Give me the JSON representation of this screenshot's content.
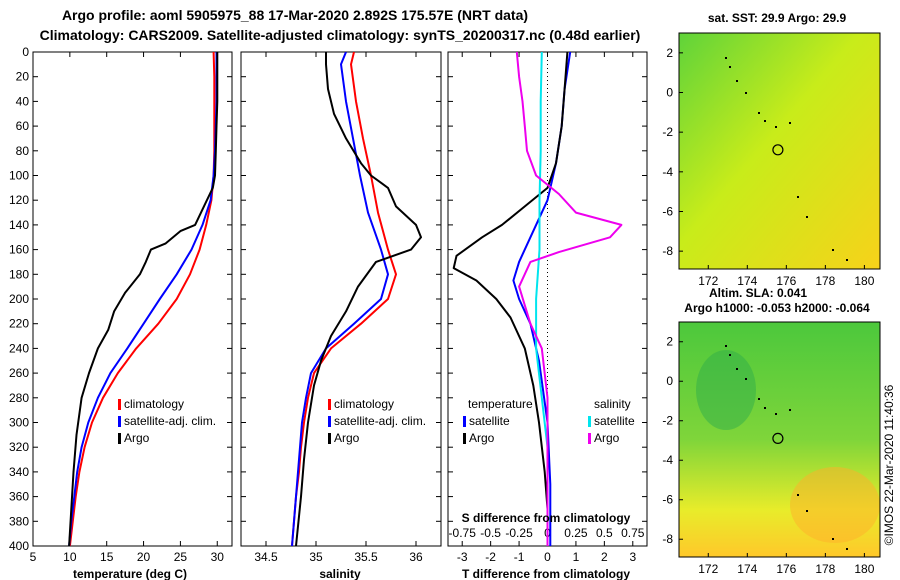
{
  "title_line1": "Argo profile: aoml 5905975_88 17-Mar-2020 2.892S 175.57E (NRT data)",
  "title_line2": "Climatology: CARS2009. Satellite-adjusted climatology: synTS_20200317.nc (0.48d earlier)",
  "colors": {
    "climatology": "#ff0000",
    "satellite": "#0000ff",
    "argo": "#000000",
    "sat_salinity": "#00e5ee",
    "argo_salinity": "#ee00ee"
  },
  "chart_data": [
    {
      "type": "line",
      "name": "temperature-profile",
      "xlabel": "temperature (deg C)",
      "ylabel": "",
      "xlim": [
        5,
        32
      ],
      "ylim": [
        400,
        0
      ],
      "xticks": [
        "5",
        "10",
        "15",
        "20",
        "25",
        "30"
      ],
      "xtick_values": [
        5,
        10,
        15,
        20,
        25,
        30
      ],
      "yticks": [
        "0",
        "20",
        "40",
        "60",
        "80",
        "100",
        "120",
        "140",
        "160",
        "180",
        "200",
        "220",
        "240",
        "260",
        "280",
        "300",
        "320",
        "340",
        "360",
        "380",
        "400"
      ],
      "ytick_values": [
        0,
        20,
        40,
        60,
        80,
        100,
        120,
        140,
        160,
        180,
        200,
        220,
        240,
        260,
        280,
        300,
        320,
        340,
        360,
        380,
        400
      ],
      "legend": [
        "climatology",
        "satellite-adj. clim.",
        "Argo"
      ],
      "series": [
        {
          "name": "climatology",
          "color": "#ff0000",
          "points": [
            [
              29.5,
              0
            ],
            [
              29.6,
              20
            ],
            [
              29.6,
              40
            ],
            [
              29.6,
              60
            ],
            [
              29.6,
              80
            ],
            [
              29.5,
              100
            ],
            [
              29.2,
              120
            ],
            [
              28.5,
              140
            ],
            [
              27.6,
              160
            ],
            [
              26.3,
              180
            ],
            [
              24.5,
              200
            ],
            [
              22.0,
              220
            ],
            [
              19.0,
              240
            ],
            [
              16.5,
              260
            ],
            [
              14.5,
              280
            ],
            [
              13.0,
              300
            ],
            [
              12.0,
              320
            ],
            [
              11.3,
              340
            ],
            [
              10.8,
              360
            ],
            [
              10.4,
              380
            ],
            [
              10.0,
              400
            ]
          ]
        },
        {
          "name": "satellite-adj. clim.",
          "color": "#0000ff",
          "points": [
            [
              29.9,
              0
            ],
            [
              29.9,
              20
            ],
            [
              29.9,
              40
            ],
            [
              29.8,
              60
            ],
            [
              29.7,
              80
            ],
            [
              29.5,
              100
            ],
            [
              29.1,
              120
            ],
            [
              28.0,
              140
            ],
            [
              26.5,
              160
            ],
            [
              24.5,
              180
            ],
            [
              22.2,
              200
            ],
            [
              20.0,
              220
            ],
            [
              17.8,
              240
            ],
            [
              15.5,
              260
            ],
            [
              13.8,
              280
            ],
            [
              12.5,
              300
            ],
            [
              11.6,
              320
            ],
            [
              11.0,
              340
            ],
            [
              10.6,
              360
            ],
            [
              10.2,
              380
            ],
            [
              9.9,
              400
            ]
          ]
        },
        {
          "name": "Argo",
          "color": "#000000",
          "points": [
            [
              30.0,
              0
            ],
            [
              30.0,
              20
            ],
            [
              30.0,
              40
            ],
            [
              29.9,
              60
            ],
            [
              29.8,
              80
            ],
            [
              29.7,
              100
            ],
            [
              29.4,
              110
            ],
            [
              28.6,
              120
            ],
            [
              27.8,
              130
            ],
            [
              27.0,
              140
            ],
            [
              25.0,
              145
            ],
            [
              23.0,
              155
            ],
            [
              21.0,
              160
            ],
            [
              20.3,
              170
            ],
            [
              19.5,
              180
            ],
            [
              17.5,
              195
            ],
            [
              16.0,
              210
            ],
            [
              15.2,
              225
            ],
            [
              13.8,
              240
            ],
            [
              12.6,
              260
            ],
            [
              11.6,
              280
            ],
            [
              10.9,
              310
            ],
            [
              10.5,
              340
            ],
            [
              10.2,
              370
            ],
            [
              9.9,
              400
            ]
          ]
        }
      ]
    },
    {
      "type": "line",
      "name": "salinity-profile",
      "xlabel": "salinity",
      "ylabel": "",
      "xlim": [
        34.25,
        36.25
      ],
      "ylim": [
        400,
        0
      ],
      "xticks": [
        "34.5",
        "35",
        "35.5",
        "36"
      ],
      "xtick_values": [
        34.5,
        35,
        35.5,
        36
      ],
      "legend": [
        "climatology",
        "satellite-adj. clim.",
        "Argo"
      ],
      "series": [
        {
          "name": "climatology",
          "color": "#ff0000",
          "points": [
            [
              35.38,
              0
            ],
            [
              35.35,
              10
            ],
            [
              35.4,
              40
            ],
            [
              35.47,
              70
            ],
            [
              35.55,
              100
            ],
            [
              35.62,
              130
            ],
            [
              35.72,
              160
            ],
            [
              35.8,
              180
            ],
            [
              35.72,
              200
            ],
            [
              35.45,
              220
            ],
            [
              35.15,
              240
            ],
            [
              34.98,
              260
            ],
            [
              34.92,
              280
            ],
            [
              34.88,
              300
            ],
            [
              34.85,
              320
            ],
            [
              34.83,
              340
            ],
            [
              34.8,
              360
            ],
            [
              34.78,
              380
            ],
            [
              34.76,
              400
            ]
          ]
        },
        {
          "name": "satellite-adj. clim.",
          "color": "#0000ff",
          "points": [
            [
              35.3,
              0
            ],
            [
              35.25,
              10
            ],
            [
              35.3,
              40
            ],
            [
              35.37,
              70
            ],
            [
              35.44,
              100
            ],
            [
              35.52,
              130
            ],
            [
              35.65,
              160
            ],
            [
              35.72,
              180
            ],
            [
              35.65,
              200
            ],
            [
              35.38,
              220
            ],
            [
              35.1,
              240
            ],
            [
              34.95,
              260
            ],
            [
              34.9,
              280
            ],
            [
              34.86,
              300
            ],
            [
              34.84,
              320
            ],
            [
              34.82,
              340
            ],
            [
              34.8,
              360
            ],
            [
              34.78,
              380
            ],
            [
              34.76,
              400
            ]
          ]
        },
        {
          "name": "Argo",
          "color": "#000000",
          "points": [
            [
              35.1,
              0
            ],
            [
              35.1,
              10
            ],
            [
              35.12,
              30
            ],
            [
              35.18,
              50
            ],
            [
              35.3,
              70
            ],
            [
              35.45,
              90
            ],
            [
              35.55,
              100
            ],
            [
              35.72,
              110
            ],
            [
              35.8,
              125
            ],
            [
              36.0,
              140
            ],
            [
              36.05,
              150
            ],
            [
              35.95,
              160
            ],
            [
              35.6,
              170
            ],
            [
              35.42,
              190
            ],
            [
              35.3,
              210
            ],
            [
              35.15,
              230
            ],
            [
              35.05,
              250
            ],
            [
              34.98,
              270
            ],
            [
              34.92,
              300
            ],
            [
              34.88,
              330
            ],
            [
              34.85,
              360
            ],
            [
              34.8,
              400
            ]
          ]
        }
      ]
    },
    {
      "type": "line",
      "name": "difference-profile",
      "xlabel": "T difference from climatology",
      "ylabel": "",
      "xlim": [
        -3.5,
        3.5
      ],
      "ylim": [
        400,
        0
      ],
      "xticks": [
        "-3",
        "-2",
        "-1",
        "0",
        "1",
        "2",
        "3"
      ],
      "xtick_values": [
        -3,
        -2,
        -1,
        0,
        1,
        2,
        3
      ],
      "top_axis_label": "S difference from climatology",
      "top_ticks": [
        "-0.75",
        "-0.5",
        "-0.25",
        "0",
        "0.25",
        "0.5",
        "0.75"
      ],
      "top_tick_values": [
        -0.75,
        -0.5,
        -0.25,
        0,
        0.25,
        0.5,
        0.75
      ],
      "legend_left_title": "temperature",
      "legend_right_title": "salinity",
      "legend_left": [
        "satellite",
        "Argo"
      ],
      "legend_right": [
        "satellite",
        "Argo"
      ],
      "series": [
        {
          "name": "T satellite",
          "color": "#0000ff",
          "axis": "T",
          "points": [
            [
              0.8,
              0
            ],
            [
              0.6,
              30
            ],
            [
              0.5,
              60
            ],
            [
              0.3,
              90
            ],
            [
              0.0,
              120
            ],
            [
              -0.6,
              150
            ],
            [
              -1.0,
              170
            ],
            [
              -1.2,
              185
            ],
            [
              -1.0,
              200
            ],
            [
              -0.6,
              220
            ],
            [
              -0.3,
              250
            ],
            [
              0.0,
              300
            ],
            [
              0.1,
              350
            ],
            [
              0.1,
              400
            ]
          ]
        },
        {
          "name": "T Argo",
          "color": "#000000",
          "axis": "T",
          "points": [
            [
              0.7,
              0
            ],
            [
              0.6,
              30
            ],
            [
              0.5,
              60
            ],
            [
              0.3,
              90
            ],
            [
              0.0,
              110
            ],
            [
              -0.8,
              125
            ],
            [
              -1.6,
              140
            ],
            [
              -2.3,
              150
            ],
            [
              -3.2,
              165
            ],
            [
              -3.3,
              175
            ],
            [
              -2.5,
              185
            ],
            [
              -1.8,
              200
            ],
            [
              -1.3,
              215
            ],
            [
              -0.8,
              240
            ],
            [
              -0.5,
              270
            ],
            [
              -0.3,
              300
            ],
            [
              -0.1,
              340
            ],
            [
              0.0,
              370
            ],
            [
              0.0,
              400
            ]
          ]
        },
        {
          "name": "S satellite",
          "color": "#00e5ee",
          "axis": "S",
          "points": [
            [
              -0.05,
              0
            ],
            [
              -0.06,
              40
            ],
            [
              -0.06,
              80
            ],
            [
              -0.07,
              120
            ],
            [
              -0.07,
              160
            ],
            [
              -0.1,
              200
            ],
            [
              -0.1,
              240
            ],
            [
              -0.05,
              280
            ],
            [
              0.0,
              320
            ],
            [
              0.0,
              360
            ],
            [
              0.0,
              400
            ]
          ]
        },
        {
          "name": "S Argo",
          "color": "#ee00ee",
          "axis": "S",
          "points": [
            [
              -0.27,
              0
            ],
            [
              -0.25,
              20
            ],
            [
              -0.22,
              40
            ],
            [
              -0.2,
              60
            ],
            [
              -0.18,
              80
            ],
            [
              -0.1,
              100
            ],
            [
              0.1,
              115
            ],
            [
              0.25,
              130
            ],
            [
              0.65,
              140
            ],
            [
              0.55,
              150
            ],
            [
              0.1,
              162
            ],
            [
              -0.15,
              170
            ],
            [
              -0.25,
              190
            ],
            [
              -0.15,
              220
            ],
            [
              -0.05,
              240
            ],
            [
              0.0,
              280
            ],
            [
              0.0,
              320
            ],
            [
              0.0,
              360
            ],
            [
              0.0,
              400
            ]
          ]
        }
      ]
    },
    {
      "type": "heatmap",
      "name": "sst-map",
      "title": "sat. SST: 29.9 Argo: 29.9",
      "xticks": [
        "172",
        "174",
        "176",
        "178",
        "180"
      ],
      "xtick_values": [
        172,
        174,
        176,
        178,
        180
      ],
      "yticks": [
        "2",
        "0",
        "-2",
        "-4",
        "-6",
        "-8"
      ],
      "ytick_values": [
        2,
        0,
        -2,
        -4,
        -6,
        -8
      ],
      "xlim": [
        170.5,
        180.8
      ],
      "ylim": [
        -8.9,
        3.0
      ],
      "marker": [
        175.57,
        -2.892
      ]
    },
    {
      "type": "heatmap",
      "name": "sla-map",
      "title": "Altim. SLA: 0.041",
      "subtitle": "Argo h1000: -0.053 h2000: -0.064",
      "xticks": [
        "172",
        "174",
        "176",
        "178",
        "180"
      ],
      "xtick_values": [
        172,
        174,
        176,
        178,
        180
      ],
      "yticks": [
        "2",
        "0",
        "-2",
        "-4",
        "-6",
        "-8"
      ],
      "ytick_values": [
        2,
        0,
        -2,
        -4,
        -6,
        -8
      ],
      "xlim": [
        170.5,
        180.8
      ],
      "ylim": [
        -8.9,
        3.0
      ],
      "marker": [
        175.57,
        -2.892
      ]
    }
  ],
  "credit": "©IMOS 22-Mar-2020 11:40:36"
}
